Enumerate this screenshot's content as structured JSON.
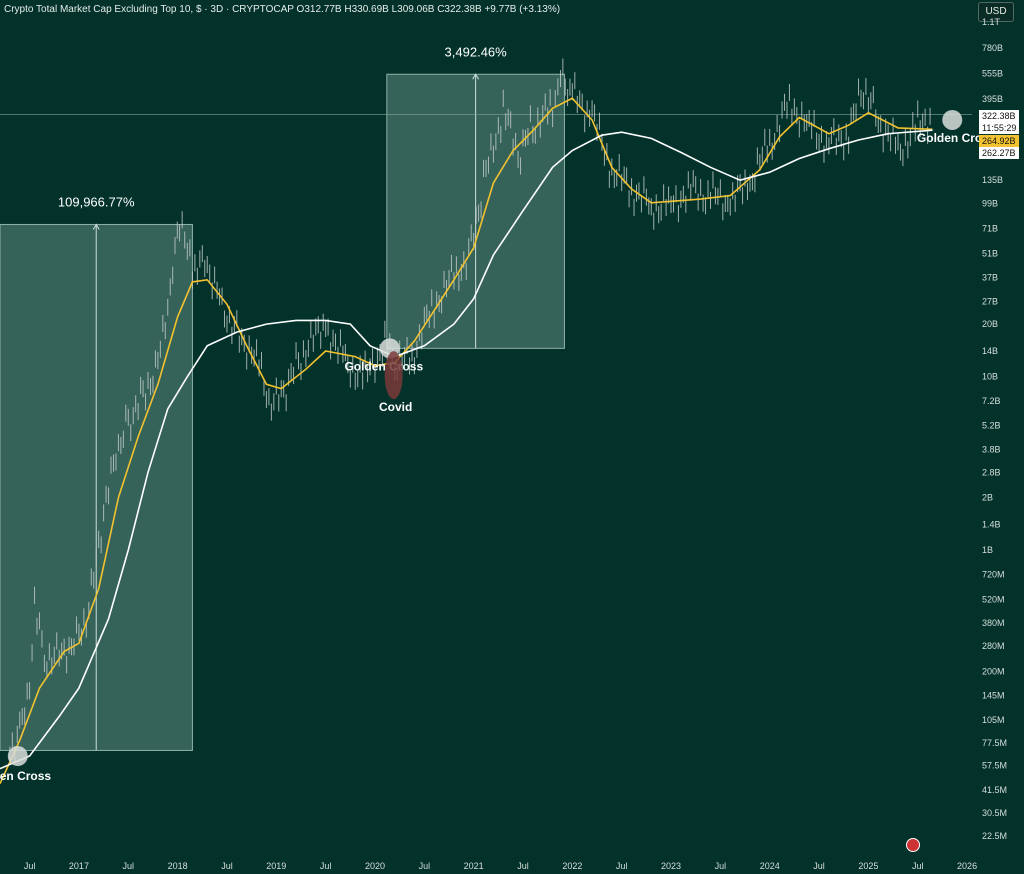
{
  "header": {
    "title": "Crypto Total Market Cap Excluding Top 10, $ · 3D · CRYPTOCAP",
    "ohlc": "O312.77B  H330.69B  L309.06B  C322.38B  +9.77B (+3.13%)"
  },
  "currency_button": "USD",
  "price_badges": {
    "last": "322.38B",
    "countdown": "11:55:29",
    "ma_fast": "264.92B",
    "ma_slow": "262.27B"
  },
  "colors": {
    "background": "#03322a",
    "candle": "#c9cfcc",
    "ma_fast": "#f2c230",
    "ma_slow": "#ffffff",
    "box": "#5f8a80",
    "covid": "#7a3a3a"
  },
  "chart_data": {
    "type": "line",
    "title": "Crypto Total Market Cap Excluding Top 10",
    "scale": "log",
    "y_ticks": [
      "1.1T",
      "780B",
      "555B",
      "395B",
      "135B",
      "99B",
      "71B",
      "51B",
      "37B",
      "27B",
      "20B",
      "14B",
      "10B",
      "7.2B",
      "5.2B",
      "3.8B",
      "2.8B",
      "2B",
      "1.4B",
      "1B",
      "720M",
      "520M",
      "380M",
      "280M",
      "200M",
      "145M",
      "105M",
      "77.5M",
      "57.5M",
      "41.5M",
      "30.5M",
      "22.5M"
    ],
    "x_ticks": [
      "Jul",
      "2017",
      "Jul",
      "2018",
      "Jul",
      "2019",
      "Jul",
      "2020",
      "Jul",
      "2021",
      "Jul",
      "2022",
      "Jul",
      "2023",
      "Jul",
      "2024",
      "Jul",
      "2025",
      "Jul",
      "2026"
    ],
    "ylim_dollars": [
      22500000,
      1100000000000
    ],
    "xlim_years": [
      2016.2,
      2026.05
    ],
    "series": [
      {
        "name": "Market Cap (close)",
        "points": [
          [
            2016.3,
            60000000.0
          ],
          [
            2016.4,
            90000000.0
          ],
          [
            2016.5,
            140000000.0
          ],
          [
            2016.55,
            550000000.0
          ],
          [
            2016.65,
            240000000.0
          ],
          [
            2016.8,
            260000000.0
          ],
          [
            2016.95,
            290000000.0
          ],
          [
            2017.1,
            450000000.0
          ],
          [
            2017.25,
            1600000000.0
          ],
          [
            2017.4,
            4000000000.0
          ],
          [
            2017.5,
            5500000000.0
          ],
          [
            2017.65,
            8000000000.0
          ],
          [
            2017.8,
            12000000000.0
          ],
          [
            2017.95,
            40000000000.0
          ],
          [
            2018.02,
            75000000000.0
          ],
          [
            2018.15,
            40000000000.0
          ],
          [
            2018.3,
            45000000000.0
          ],
          [
            2018.45,
            26000000000.0
          ],
          [
            2018.6,
            18000000000.0
          ],
          [
            2018.8,
            13000000000.0
          ],
          [
            2018.95,
            6500000000.0
          ],
          [
            2019.1,
            8500000000.0
          ],
          [
            2019.25,
            13000000000.0
          ],
          [
            2019.5,
            20000000000.0
          ],
          [
            2019.7,
            12000000000.0
          ],
          [
            2019.9,
            10000000000.0
          ],
          [
            2020.1,
            16000000000.0
          ],
          [
            2020.2,
            11000000000.0
          ],
          [
            2020.4,
            14000000000.0
          ],
          [
            2020.6,
            26000000000.0
          ],
          [
            2020.8,
            38000000000.0
          ],
          [
            2020.95,
            50000000000.0
          ],
          [
            2021.1,
            130000000000.0
          ],
          [
            2021.3,
            350000000000.0
          ],
          [
            2021.45,
            180000000000.0
          ],
          [
            2021.6,
            280000000000.0
          ],
          [
            2021.8,
            350000000000.0
          ],
          [
            2021.88,
            550000000000.0
          ],
          [
            2022.0,
            420000000000.0
          ],
          [
            2022.2,
            320000000000.0
          ],
          [
            2022.4,
            150000000000.0
          ],
          [
            2022.6,
            120000000000.0
          ],
          [
            2022.8,
            95000000000.0
          ],
          [
            2023.0,
            100000000000.0
          ],
          [
            2023.2,
            120000000000.0
          ],
          [
            2023.4,
            110000000000.0
          ],
          [
            2023.6,
            100000000000.0
          ],
          [
            2023.8,
            130000000000.0
          ],
          [
            2024.0,
            220000000000.0
          ],
          [
            2024.2,
            380000000000.0
          ],
          [
            2024.4,
            280000000000.0
          ],
          [
            2024.6,
            220000000000.0
          ],
          [
            2024.8,
            250000000000.0
          ],
          [
            2024.95,
            460000000000.0
          ],
          [
            2025.1,
            300000000000.0
          ],
          [
            2025.3,
            200000000000.0
          ],
          [
            2025.5,
            280000000000.0
          ],
          [
            2025.65,
            322000000000.0
          ]
        ]
      },
      {
        "name": "Fast MA",
        "points": [
          [
            2016.2,
            45000000.0
          ],
          [
            2016.4,
            80000000.0
          ],
          [
            2016.6,
            160000000.0
          ],
          [
            2016.85,
            260000000.0
          ],
          [
            2017.0,
            290000000.0
          ],
          [
            2017.2,
            600000000.0
          ],
          [
            2017.4,
            2000000000.0
          ],
          [
            2017.6,
            4500000000.0
          ],
          [
            2017.8,
            9000000000.0
          ],
          [
            2018.0,
            22000000000.0
          ],
          [
            2018.15,
            35000000000.0
          ],
          [
            2018.3,
            36000000000.0
          ],
          [
            2018.5,
            26000000000.0
          ],
          [
            2018.7,
            15000000000.0
          ],
          [
            2018.9,
            9000000000.0
          ],
          [
            2019.05,
            8500000000.0
          ],
          [
            2019.3,
            11000000000.0
          ],
          [
            2019.5,
            14000000000.0
          ],
          [
            2019.8,
            13000000000.0
          ],
          [
            2020.0,
            11500000000.0
          ],
          [
            2020.2,
            12000000000.0
          ],
          [
            2020.4,
            16000000000.0
          ],
          [
            2020.6,
            24000000000.0
          ],
          [
            2020.8,
            36000000000.0
          ],
          [
            2021.0,
            55000000000.0
          ],
          [
            2021.2,
            130000000000.0
          ],
          [
            2021.4,
            200000000000.0
          ],
          [
            2021.6,
            260000000000.0
          ],
          [
            2021.8,
            350000000000.0
          ],
          [
            2022.0,
            400000000000.0
          ],
          [
            2022.2,
            300000000000.0
          ],
          [
            2022.4,
            160000000000.0
          ],
          [
            2022.6,
            120000000000.0
          ],
          [
            2022.8,
            100000000000.0
          ],
          [
            2023.0,
            102000000000.0
          ],
          [
            2023.3,
            105000000000.0
          ],
          [
            2023.6,
            110000000000.0
          ],
          [
            2023.9,
            155000000000.0
          ],
          [
            2024.1,
            240000000000.0
          ],
          [
            2024.3,
            310000000000.0
          ],
          [
            2024.6,
            250000000000.0
          ],
          [
            2024.8,
            280000000000.0
          ],
          [
            2025.0,
            330000000000.0
          ],
          [
            2025.3,
            270000000000.0
          ],
          [
            2025.65,
            265000000000.0
          ]
        ]
      },
      {
        "name": "Slow MA",
        "points": [
          [
            2016.2,
            55000000.0
          ],
          [
            2016.5,
            65000000.0
          ],
          [
            2016.8,
            110000000.0
          ],
          [
            2017.0,
            160000000.0
          ],
          [
            2017.3,
            400000000.0
          ],
          [
            2017.5,
            1000000000.0
          ],
          [
            2017.7,
            2800000000.0
          ],
          [
            2017.9,
            6500000000.0
          ],
          [
            2018.1,
            10000000000.0
          ],
          [
            2018.3,
            15000000000.0
          ],
          [
            2018.6,
            18000000000.0
          ],
          [
            2018.9,
            20000000000.0
          ],
          [
            2019.2,
            21000000000.0
          ],
          [
            2019.5,
            21000000000.0
          ],
          [
            2019.75,
            20000000000.0
          ],
          [
            2019.95,
            15000000000.0
          ],
          [
            2020.2,
            13000000000.0
          ],
          [
            2020.5,
            15000000000.0
          ],
          [
            2020.8,
            20000000000.0
          ],
          [
            2021.0,
            28000000000.0
          ],
          [
            2021.2,
            50000000000.0
          ],
          [
            2021.5,
            90000000000.0
          ],
          [
            2021.8,
            160000000000.0
          ],
          [
            2022.0,
            200000000000.0
          ],
          [
            2022.3,
            245000000000.0
          ],
          [
            2022.5,
            255000000000.0
          ],
          [
            2022.8,
            235000000000.0
          ],
          [
            2023.1,
            195000000000.0
          ],
          [
            2023.4,
            160000000000.0
          ],
          [
            2023.7,
            135000000000.0
          ],
          [
            2024.0,
            150000000000.0
          ],
          [
            2024.3,
            180000000000.0
          ],
          [
            2024.6,
            205000000000.0
          ],
          [
            2024.9,
            230000000000.0
          ],
          [
            2025.2,
            250000000000.0
          ],
          [
            2025.65,
            262000000000.0
          ]
        ]
      }
    ],
    "measure_boxes": [
      {
        "label": "109,966.77%",
        "x_start": 2016.2,
        "x_end": 2018.15,
        "y_low": 70000000.0,
        "y_high": 75000000000.0
      },
      {
        "label": "3,492.46%",
        "x_start": 2020.12,
        "x_end": 2021.92,
        "y_low": 14500000000.0,
        "y_high": 550000000000.0
      }
    ],
    "annotations": [
      {
        "text": "Golden Cross",
        "x": 2016.38,
        "y": 65000000.0
      },
      {
        "text": "Golden Cross",
        "x": 2020.15,
        "y": 14500000000.0
      },
      {
        "text": "Covid",
        "x": 2020.25,
        "y": 7200000000.0
      },
      {
        "text": "Golden Cross",
        "x": 2025.85,
        "y": 300000000000.0
      }
    ],
    "last_price_line": 322380000000.0
  }
}
